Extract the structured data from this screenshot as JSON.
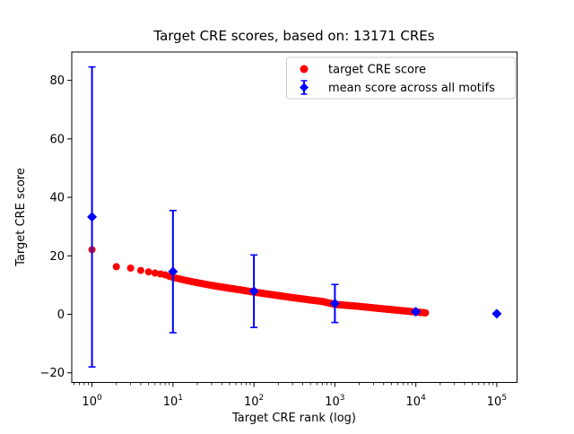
{
  "chart_data": {
    "type": "scatter",
    "title": "Target CRE scores, based on: 13171 CREs",
    "xlabel": "Target CRE rank (log)",
    "ylabel": "Target CRE score",
    "xscale": "log",
    "grid": false,
    "legend_position": "upper right",
    "n_cres": 13171,
    "xlim": [
      0.5623,
      177828
    ],
    "ylim": [
      -23.3,
      89.7
    ],
    "xticks": [
      1,
      10,
      100,
      1000,
      10000,
      100000
    ],
    "xtick_exponents": [
      0,
      1,
      2,
      3,
      4,
      5
    ],
    "yticks": [
      -20,
      0,
      20,
      40,
      60,
      80
    ],
    "series": [
      {
        "name": "target CRE score",
        "marker": "circle",
        "color": "#ff0000",
        "n_points": 13171,
        "x_max_rank": 13171,
        "anchors_x": [
          1,
          2,
          3,
          4,
          5,
          6,
          7,
          8,
          9,
          10,
          15,
          20,
          30,
          50,
          70,
          100,
          150,
          200,
          300,
          500,
          700,
          1000,
          1500,
          2000,
          3000,
          5000,
          7000,
          10000,
          13171
        ],
        "anchors_y": [
          22.1,
          16.3,
          15.8,
          15.0,
          14.5,
          14.1,
          13.8,
          13.5,
          13.0,
          12.6,
          11.5,
          10.8,
          9.9,
          8.9,
          8.3,
          7.6,
          6.9,
          6.4,
          5.7,
          4.9,
          4.4,
          3.4,
          3.0,
          2.7,
          2.2,
          1.6,
          1.2,
          0.8,
          0.5
        ]
      },
      {
        "name": "mean score across all motifs",
        "marker": "diamond",
        "color": "#0000ff",
        "x": [
          1,
          10,
          100,
          1000,
          10000,
          100000
        ],
        "y": [
          33.3,
          14.6,
          7.9,
          3.7,
          0.9,
          0.2
        ],
        "yerr": [
          51.3,
          20.9,
          12.4,
          6.5,
          0.5,
          0.3
        ]
      }
    ]
  }
}
